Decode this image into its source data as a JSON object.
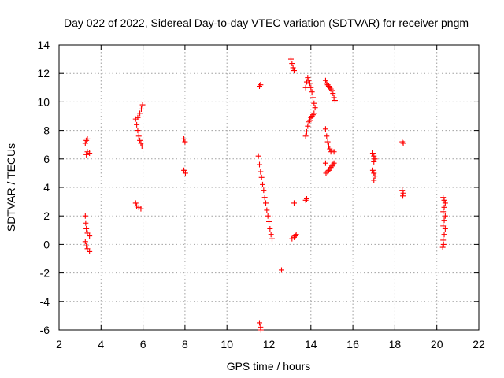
{
  "chart_data": {
    "type": "scatter",
    "title": "Day 022 of 2022, Sidereal Day-to-day VTEC variation (SDTVAR) for receiver pngm",
    "xlabel": "GPS time / hours",
    "ylabel": "SDTVAR / TECUs",
    "xlim": [
      2,
      22
    ],
    "ylim": [
      -6,
      14
    ],
    "xticks": [
      2,
      4,
      6,
      8,
      10,
      12,
      14,
      16,
      18,
      20,
      22
    ],
    "yticks": [
      -6,
      -4,
      -2,
      0,
      2,
      4,
      6,
      8,
      10,
      12,
      14
    ],
    "grid": true,
    "marker": "+",
    "color": "#ff0000",
    "series": [
      {
        "name": "SDTVAR",
        "points": [
          [
            3.25,
            7.1
          ],
          [
            3.3,
            7.3
          ],
          [
            3.35,
            7.4
          ],
          [
            3.3,
            6.3
          ],
          [
            3.35,
            6.5
          ],
          [
            3.45,
            6.4
          ],
          [
            3.25,
            2.0
          ],
          [
            3.27,
            1.5
          ],
          [
            3.3,
            1.1
          ],
          [
            3.35,
            0.8
          ],
          [
            3.45,
            0.6
          ],
          [
            3.25,
            0.2
          ],
          [
            3.3,
            -0.1
          ],
          [
            3.35,
            -0.3
          ],
          [
            3.45,
            -0.5
          ],
          [
            5.65,
            8.8
          ],
          [
            5.7,
            8.4
          ],
          [
            5.75,
            8.0
          ],
          [
            5.8,
            7.6
          ],
          [
            5.85,
            7.3
          ],
          [
            5.9,
            7.1
          ],
          [
            5.95,
            6.9
          ],
          [
            5.75,
            8.9
          ],
          [
            5.85,
            9.2
          ],
          [
            5.92,
            9.5
          ],
          [
            5.98,
            9.8
          ],
          [
            5.65,
            2.9
          ],
          [
            5.7,
            2.7
          ],
          [
            5.8,
            2.6
          ],
          [
            5.9,
            2.5
          ],
          [
            7.95,
            7.4
          ],
          [
            8.0,
            7.2
          ],
          [
            7.95,
            5.2
          ],
          [
            8.02,
            5.0
          ],
          [
            11.55,
            11.1
          ],
          [
            11.6,
            11.2
          ],
          [
            11.5,
            6.2
          ],
          [
            11.55,
            5.6
          ],
          [
            11.6,
            5.1
          ],
          [
            11.65,
            4.7
          ],
          [
            11.7,
            4.2
          ],
          [
            11.75,
            3.8
          ],
          [
            11.8,
            3.3
          ],
          [
            11.85,
            2.9
          ],
          [
            11.9,
            2.4
          ],
          [
            11.95,
            2.0
          ],
          [
            12.0,
            1.6
          ],
          [
            12.05,
            1.1
          ],
          [
            12.1,
            0.7
          ],
          [
            12.15,
            0.4
          ],
          [
            11.55,
            -5.5
          ],
          [
            11.6,
            -5.8
          ],
          [
            11.62,
            -6.0
          ],
          [
            12.6,
            -1.8
          ],
          [
            13.2,
            2.9
          ],
          [
            13.1,
            0.4
          ],
          [
            13.2,
            0.5
          ],
          [
            13.25,
            0.6
          ],
          [
            13.3,
            0.7
          ],
          [
            13.05,
            13.0
          ],
          [
            13.1,
            12.7
          ],
          [
            13.15,
            12.4
          ],
          [
            13.2,
            12.2
          ],
          [
            13.75,
            11.0
          ],
          [
            13.8,
            11.4
          ],
          [
            13.85,
            11.7
          ],
          [
            13.9,
            11.5
          ],
          [
            13.95,
            11.3
          ],
          [
            14.0,
            11.0
          ],
          [
            14.05,
            10.7
          ],
          [
            14.1,
            10.3
          ],
          [
            14.15,
            9.9
          ],
          [
            14.2,
            9.6
          ],
          [
            13.75,
            7.6
          ],
          [
            13.8,
            7.9
          ],
          [
            13.85,
            8.3
          ],
          [
            13.9,
            8.6
          ],
          [
            13.95,
            8.7
          ],
          [
            14.0,
            8.9
          ],
          [
            14.05,
            9.0
          ],
          [
            14.1,
            9.1
          ],
          [
            14.15,
            9.2
          ],
          [
            13.75,
            3.1
          ],
          [
            13.8,
            3.2
          ],
          [
            14.7,
            11.5
          ],
          [
            14.75,
            11.3
          ],
          [
            14.8,
            11.2
          ],
          [
            14.85,
            11.1
          ],
          [
            14.9,
            11.0
          ],
          [
            14.95,
            10.9
          ],
          [
            15.0,
            10.8
          ],
          [
            15.05,
            10.6
          ],
          [
            15.1,
            10.3
          ],
          [
            15.15,
            10.1
          ],
          [
            14.7,
            8.1
          ],
          [
            14.75,
            7.6
          ],
          [
            14.8,
            7.2
          ],
          [
            14.85,
            6.9
          ],
          [
            14.9,
            6.7
          ],
          [
            14.95,
            6.5
          ],
          [
            15.0,
            6.6
          ],
          [
            15.1,
            6.5
          ],
          [
            14.7,
            5.7
          ],
          [
            14.72,
            5.0
          ],
          [
            14.8,
            5.1
          ],
          [
            14.85,
            5.2
          ],
          [
            14.9,
            5.3
          ],
          [
            14.95,
            5.4
          ],
          [
            15.0,
            5.5
          ],
          [
            15.05,
            5.6
          ],
          [
            15.1,
            5.7
          ],
          [
            16.95,
            6.4
          ],
          [
            17.0,
            6.2
          ],
          [
            17.05,
            6.0
          ],
          [
            17.0,
            5.8
          ],
          [
            16.95,
            5.2
          ],
          [
            17.0,
            5.0
          ],
          [
            17.05,
            4.8
          ],
          [
            17.0,
            4.5
          ],
          [
            18.35,
            7.2
          ],
          [
            18.4,
            7.1
          ],
          [
            18.35,
            3.8
          ],
          [
            18.4,
            3.6
          ],
          [
            18.38,
            3.4
          ],
          [
            20.3,
            3.3
          ],
          [
            20.35,
            3.1
          ],
          [
            20.4,
            2.9
          ],
          [
            20.35,
            2.6
          ],
          [
            20.3,
            2.3
          ],
          [
            20.4,
            2.0
          ],
          [
            20.35,
            1.7
          ],
          [
            20.3,
            1.3
          ],
          [
            20.4,
            1.1
          ],
          [
            20.35,
            0.7
          ],
          [
            20.3,
            0.3
          ],
          [
            20.32,
            0.0
          ],
          [
            20.28,
            -0.2
          ]
        ]
      }
    ]
  }
}
